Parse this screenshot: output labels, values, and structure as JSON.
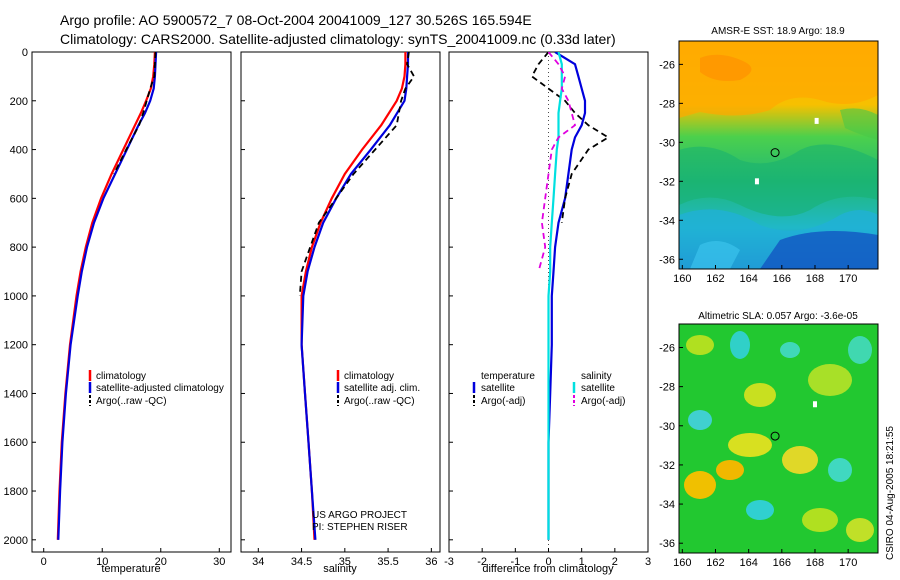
{
  "header": {
    "line1": "Argo profile: AO 5900572_7 08-Oct-2004 20041009_127 30.526S 165.594E",
    "line2": "Climatology: CARS2000. Satellite-adjusted climatology: synTS_20041009.nc (0.33d later)"
  },
  "colors": {
    "climatology": "#ff0000",
    "satellite": "#0000dd",
    "argo": "#000000",
    "salinity_sat": "#00e0e0",
    "salinity_argo": "#e000e0"
  },
  "chart_data": [
    {
      "type": "line",
      "name": "temperature-profile",
      "xlabel": "temperature",
      "ylabel": "",
      "xlim": [
        -2,
        32
      ],
      "ylim": [
        2050,
        0
      ],
      "xticks": [
        0,
        10,
        20,
        30
      ],
      "yticks": [
        0,
        200,
        400,
        600,
        800,
        1000,
        1200,
        1400,
        1600,
        1800,
        2000
      ],
      "depth": [
        0,
        50,
        100,
        150,
        200,
        250,
        300,
        400,
        500,
        600,
        700,
        800,
        900,
        1000,
        1200,
        1400,
        1600,
        1800,
        2000
      ],
      "series": [
        {
          "name": "climatology",
          "color": "#ff0000",
          "dash": "",
          "values": [
            19.0,
            18.9,
            18.7,
            18.3,
            17.5,
            16.6,
            15.6,
            13.6,
            11.6,
            9.8,
            8.3,
            7.2,
            6.3,
            5.6,
            4.5,
            3.7,
            3.1,
            2.7,
            2.4
          ]
        },
        {
          "name": "satellite-adjusted climatology",
          "color": "#0000dd",
          "dash": "",
          "values": [
            19.2,
            19.1,
            19.0,
            18.8,
            18.2,
            17.3,
            16.2,
            14.2,
            12.2,
            10.2,
            8.6,
            7.4,
            6.5,
            5.8,
            4.6,
            3.8,
            3.2,
            2.8,
            2.5
          ]
        },
        {
          "name": "Argo(..raw -QC)",
          "color": "#000000",
          "dash": "6,4",
          "values": [
            19.1,
            19.0,
            18.9,
            18.2,
            17.6,
            17.0,
            16.3,
            14.1,
            12.0,
            null,
            null,
            null,
            null,
            null,
            null,
            null,
            null,
            null,
            null
          ]
        }
      ],
      "legend": [
        "climatology",
        "satellite-adjusted climatology",
        "Argo(..raw -QC)"
      ],
      "legend_position": "lower-right"
    },
    {
      "type": "line",
      "name": "salinity-profile",
      "xlabel": "salinity",
      "xlim": [
        33.8,
        36.1
      ],
      "ylim": [
        2050,
        0
      ],
      "xticks": [
        34,
        34.5,
        35,
        35.5,
        36
      ],
      "xticklabels": [
        "34",
        "34.5",
        "35",
        "35.5",
        "36"
      ],
      "depth": [
        0,
        50,
        100,
        150,
        200,
        300,
        400,
        500,
        600,
        700,
        800,
        900,
        1000,
        1200,
        1400,
        1600,
        1800,
        2000
      ],
      "series": [
        {
          "name": "climatology",
          "color": "#ff0000",
          "dash": "",
          "values": [
            35.7,
            35.7,
            35.69,
            35.66,
            35.6,
            35.42,
            35.2,
            35.0,
            34.85,
            34.72,
            34.62,
            34.55,
            34.5,
            34.5,
            34.54,
            34.58,
            34.62,
            34.65
          ]
        },
        {
          "name": "satellite adj. clim.",
          "color": "#0000dd",
          "dash": "",
          "values": [
            35.73,
            35.73,
            35.72,
            35.71,
            35.69,
            35.52,
            35.3,
            35.07,
            34.9,
            34.75,
            34.65,
            34.57,
            34.52,
            34.5,
            34.54,
            34.58,
            34.62,
            34.66
          ]
        },
        {
          "name": "Argo(..raw -QC)",
          "color": "#000000",
          "dash": "6,4",
          "values": [
            35.74,
            35.72,
            35.8,
            35.7,
            35.65,
            35.6,
            35.35,
            35.1,
            34.9,
            34.7,
            34.6,
            34.5,
            34.48,
            null,
            null,
            null,
            null,
            null
          ]
        }
      ],
      "legend": [
        "climatology",
        "satellite adj. clim.",
        "Argo(..raw -QC)"
      ],
      "annotation": [
        "US ARGO PROJECT",
        "PI: STEPHEN RISER"
      ]
    },
    {
      "type": "line",
      "name": "difference-profile",
      "xlabel": "difference from climatology",
      "xlim": [
        -3,
        3
      ],
      "ylim": [
        2050,
        0
      ],
      "xticks": [
        -3,
        -2,
        -1,
        0,
        1,
        2,
        3
      ],
      "xticklabels": [
        "-3",
        "-2",
        "-1",
        "0",
        "1",
        "2",
        "3"
      ],
      "depth": [
        0,
        50,
        100,
        150,
        200,
        250,
        300,
        350,
        400,
        500,
        600,
        700,
        800,
        900,
        1000,
        1200,
        1400,
        1600,
        1800,
        2000
      ],
      "series": [
        {
          "name": "temperature satellite",
          "color": "#0000dd",
          "dash": "",
          "values": [
            0.2,
            0.8,
            0.9,
            1.0,
            1.1,
            1.1,
            1.0,
            0.8,
            0.7,
            0.6,
            0.5,
            0.3,
            0.2,
            0.15,
            0.1,
            0.1,
            0.05,
            0.0,
            0.0,
            0.0
          ]
        },
        {
          "name": "temperature Argo(-adj)",
          "color": "#000000",
          "dash": "6,4",
          "values": [
            0.0,
            -0.3,
            -0.5,
            0.0,
            0.5,
            0.8,
            1.2,
            1.8,
            1.2,
            0.7,
            0.5,
            0.4,
            null,
            null,
            null,
            null,
            null,
            null,
            null,
            null
          ]
        },
        {
          "name": "salinity satellite",
          "color": "#00e0e0",
          "dash": "",
          "values": [
            0.3,
            0.4,
            0.4,
            0.4,
            0.35,
            0.3,
            0.3,
            0.3,
            0.25,
            0.2,
            0.15,
            0.1,
            0.05,
            0.05,
            0.0,
            0.0,
            0.0,
            0.0,
            0.0,
            0.0
          ]
        },
        {
          "name": "salinity Argo(-adj)",
          "color": "#e000e0",
          "dash": "6,4",
          "values": [
            0.0,
            0.3,
            0.5,
            0.4,
            0.6,
            0.7,
            0.8,
            0.3,
            0.1,
            0.0,
            -0.1,
            -0.2,
            -0.1,
            -0.3,
            null,
            null,
            null,
            null,
            null,
            null
          ]
        }
      ],
      "legend_left": {
        "title": "temperature",
        "items": [
          "satellite",
          "Argo(-adj)"
        ]
      },
      "legend_right": {
        "title": "salinity",
        "items": [
          "satellite",
          "Argo(-adj)"
        ]
      }
    },
    {
      "type": "heatmap",
      "name": "sst-map",
      "title": "AMSR-E SST: 18.9 Argo: 18.9",
      "xlim": [
        159.8,
        171.8
      ],
      "ylim": [
        -36.5,
        -24.8
      ],
      "xticks": [
        160,
        162,
        164,
        166,
        168,
        170
      ],
      "yticks": [
        -26,
        -28,
        -30,
        -32,
        -34,
        -36
      ],
      "profile_marker": {
        "lon": 165.594,
        "lat": -30.526
      },
      "white_markers": [
        {
          "lon": 168.1,
          "lat": -28.9
        },
        {
          "lon": 164.5,
          "lat": -32.0
        }
      ]
    },
    {
      "type": "heatmap",
      "name": "sla-map",
      "title": "Altimetric SLA: 0.057 Argo: -3.6e-05",
      "xlim": [
        159.8,
        171.8
      ],
      "ylim": [
        -36.5,
        -24.8
      ],
      "xticks": [
        160,
        162,
        164,
        166,
        168,
        170
      ],
      "yticks": [
        -26,
        -28,
        -30,
        -32,
        -34,
        -36
      ],
      "profile_marker": {
        "lon": 165.594,
        "lat": -30.526
      },
      "white_markers": [
        {
          "lon": 168.0,
          "lat": -28.9
        }
      ]
    }
  ],
  "footer": {
    "stamp": "CSIRO 04-Aug-2005 18:21:55"
  }
}
